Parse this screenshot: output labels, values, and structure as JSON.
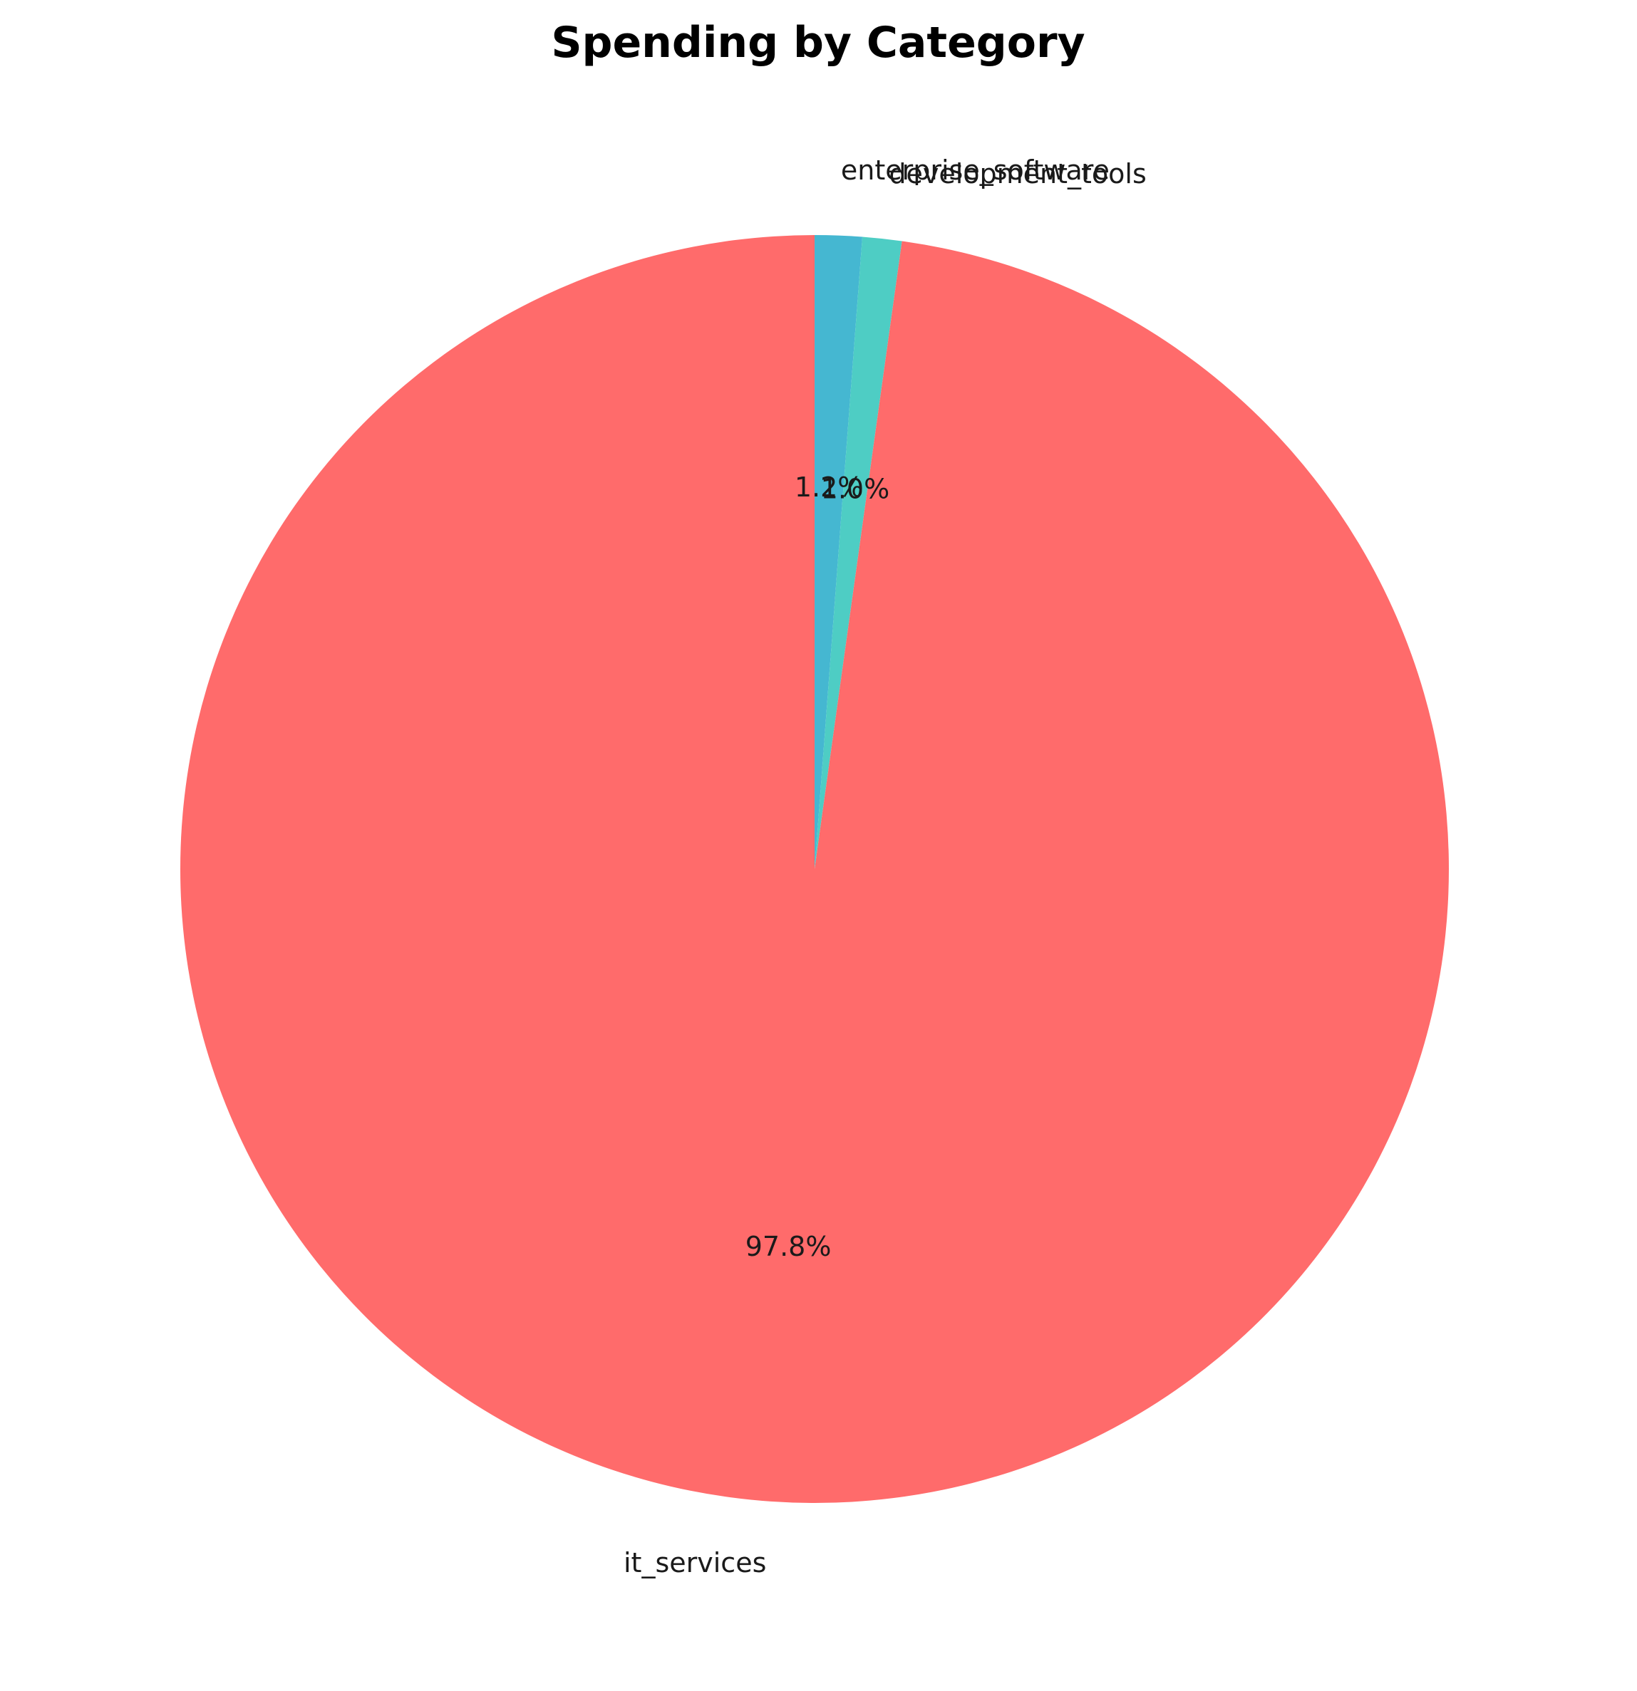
{
  "chart_data": {
    "type": "pie",
    "title": "Spending by Category",
    "start_angle_deg": 90,
    "direction": "clockwise",
    "slices": [
      {
        "label": "enterprise_software",
        "value": 1.2,
        "pct_label": "1.2%",
        "color": "#45B7D1"
      },
      {
        "label": "development_tools",
        "value": 1.0,
        "pct_label": "1.0%",
        "color": "#4ECDC4"
      },
      {
        "label": "it_services",
        "value": 97.8,
        "pct_label": "97.8%",
        "color": "#FF6B6B"
      }
    ]
  }
}
